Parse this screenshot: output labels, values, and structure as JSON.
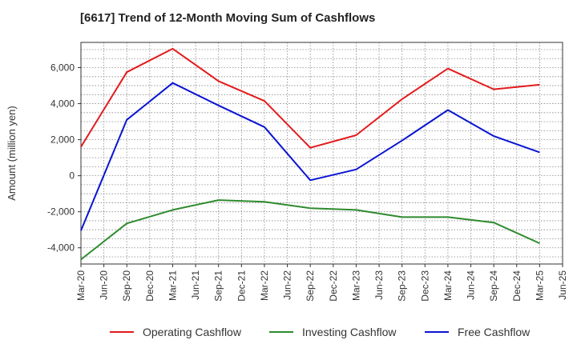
{
  "title": "[6617]  Trend of 12-Month Moving Sum of Cashflows",
  "chart_data": {
    "type": "line",
    "title": "[6617]  Trend of 12-Month Moving Sum of Cashflows",
    "xlabel": "",
    "ylabel": "Amount (million yen)",
    "x": [
      "Mar-20",
      "Jun-20",
      "Sep-20",
      "Dec-20",
      "Mar-21",
      "Jun-21",
      "Sep-21",
      "Dec-21",
      "Mar-22",
      "Jun-22",
      "Sep-22",
      "Dec-22",
      "Mar-23",
      "Jun-23",
      "Sep-23",
      "Dec-23",
      "Mar-24",
      "Jun-24",
      "Sep-24",
      "Dec-24",
      "Mar-25",
      "Jun-25"
    ],
    "ylim": [
      -4900,
      7400
    ],
    "yticks": [
      -4000,
      -2000,
      0,
      2000,
      4000,
      6000
    ],
    "ytick_labels": [
      "-4,000",
      "-2,000",
      "0",
      "2,000",
      "4,000",
      "6,000"
    ],
    "grid": true,
    "legend_position": "bottom",
    "series": [
      {
        "name": "Operating Cashflow",
        "color": "#e31a1c",
        "values": [
          1600,
          null,
          5750,
          null,
          7050,
          null,
          5250,
          null,
          4150,
          null,
          1550,
          null,
          2250,
          null,
          4250,
          null,
          5950,
          null,
          4800,
          null,
          5050,
          null
        ]
      },
      {
        "name": "Investing Cashflow",
        "color": "#2e8b2e",
        "values": [
          -4650,
          null,
          -2650,
          null,
          -1900,
          null,
          -1350,
          null,
          -1450,
          null,
          -1800,
          null,
          -1900,
          null,
          -2300,
          null,
          -2300,
          null,
          -2600,
          null,
          -3750,
          null
        ]
      },
      {
        "name": "Free Cashflow",
        "color": "#0a14d2",
        "values": [
          -3050,
          null,
          3100,
          null,
          5150,
          null,
          3900,
          null,
          2700,
          null,
          -250,
          null,
          350,
          null,
          1950,
          null,
          3650,
          null,
          2200,
          null,
          1300,
          null
        ]
      }
    ]
  }
}
